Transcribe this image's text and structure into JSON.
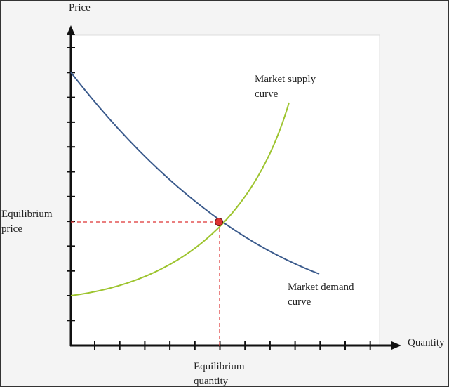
{
  "axes": {
    "y_label": "Price",
    "x_label": "Quantity"
  },
  "curves": {
    "supply": [
      "Market supply",
      "curve"
    ],
    "demand": [
      "Market demand",
      "curve"
    ]
  },
  "equilibrium": {
    "price": [
      "Equilibrium",
      "price"
    ],
    "quantity": [
      "Equilibrium",
      "quantity"
    ]
  }
}
